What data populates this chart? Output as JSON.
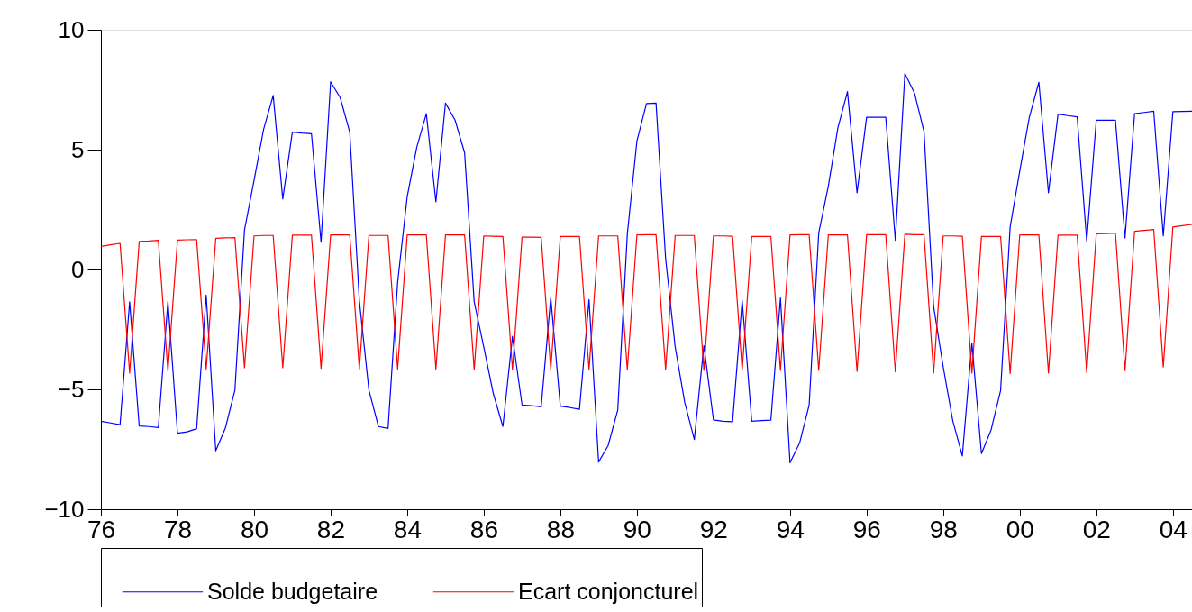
{
  "chart_data": {
    "type": "line",
    "x": [
      1976,
      1976.25,
      1976.5,
      1976.75,
      1977,
      1977.25,
      1977.5,
      1977.75,
      1978,
      1978.25,
      1978.5,
      1978.75,
      1979,
      1979.25,
      1979.5,
      1979.75,
      1980,
      1980.25,
      1980.5,
      1980.75,
      1981,
      1981.25,
      1981.5,
      1981.75,
      1982,
      1982.25,
      1982.5,
      1982.75,
      1983,
      1983.25,
      1983.5,
      1983.75,
      1984,
      1984.25,
      1984.5,
      1984.75,
      1985,
      1985.25,
      1985.5,
      1985.75,
      1986,
      1986.25,
      1986.5,
      1986.75,
      1987,
      1987.25,
      1987.5,
      1987.75,
      1988,
      1988.25,
      1988.5,
      1988.75,
      1989,
      1989.25,
      1989.5,
      1989.75,
      1990,
      1990.25,
      1990.5,
      1990.75,
      1991,
      1991.25,
      1991.5,
      1991.75,
      1992,
      1992.25,
      1992.5,
      1992.75,
      1993,
      1993.25,
      1993.5,
      1993.75,
      1994,
      1994.25,
      1994.5,
      1994.75,
      1995,
      1995.25,
      1995.5,
      1995.75,
      1996,
      1996.25,
      1996.5,
      1996.75,
      1997,
      1997.25,
      1997.5,
      1997.75,
      1998,
      1998.25,
      1998.5,
      1998.75,
      1999,
      1999.25,
      1999.5,
      1999.75,
      2000,
      2000.25,
      2000.5,
      2000.75,
      2001,
      2001.25,
      2001.5,
      2001.75,
      2002,
      2002.25,
      2002.5,
      2002.75,
      2003,
      2003.25,
      2003.5,
      2003.75,
      2004,
      2004.25,
      2004.5
    ],
    "series": [
      {
        "name": "Solde budgetaire",
        "color": "#0000ff",
        "values": [
          -6.33,
          -6.4,
          -6.47,
          -1.35,
          -6.53,
          -6.55,
          -6.59,
          -1.33,
          -6.83,
          -6.77,
          -6.64,
          -1.07,
          -7.56,
          -6.62,
          -5.03,
          1.65,
          3.72,
          5.85,
          7.26,
          2.94,
          5.73,
          5.69,
          5.66,
          1.14,
          7.83,
          7.17,
          5.73,
          -1.29,
          -5.03,
          -6.55,
          -6.63,
          -0.54,
          3.03,
          5.1,
          6.5,
          2.82,
          6.94,
          6.23,
          4.87,
          -1.35,
          -3.23,
          -5.18,
          -6.55,
          -2.79,
          -5.65,
          -5.68,
          -5.73,
          -1.17,
          -5.7,
          -5.76,
          -5.83,
          -1.25,
          -8.03,
          -7.34,
          -5.86,
          1.47,
          5.35,
          6.92,
          6.94,
          0.46,
          -3.23,
          -5.55,
          -7.09,
          -3.17,
          -6.27,
          -6.33,
          -6.35,
          -1.29,
          -6.33,
          -6.3,
          -6.28,
          -1.19,
          -8.06,
          -7.24,
          -5.65,
          1.53,
          3.47,
          5.91,
          7.42,
          3.2,
          6.35,
          6.35,
          6.35,
          1.22,
          8.18,
          7.36,
          5.75,
          -1.54,
          -4.05,
          -6.3,
          -7.78,
          -3.07,
          -7.68,
          -6.7,
          -5.05,
          1.78,
          4.1,
          6.35,
          7.81,
          3.2,
          6.48,
          6.42,
          6.37,
          1.19,
          6.23,
          6.23,
          6.23,
          1.32,
          6.5,
          6.55,
          6.6,
          1.4,
          6.58,
          6.59,
          6.6
        ]
      },
      {
        "name": "Ecart conjoncturel",
        "color": "#ff0000",
        "values": [
          0.96,
          1.03,
          1.09,
          -4.32,
          1.17,
          1.19,
          1.22,
          -4.24,
          1.23,
          1.24,
          1.25,
          -4.15,
          1.3,
          1.32,
          1.33,
          -4.1,
          1.4,
          1.42,
          1.42,
          -4.1,
          1.43,
          1.43,
          1.43,
          -4.12,
          1.44,
          1.44,
          1.44,
          -4.15,
          1.42,
          1.42,
          1.42,
          -4.15,
          1.44,
          1.44,
          1.44,
          -4.15,
          1.44,
          1.44,
          1.44,
          -4.17,
          1.4,
          1.39,
          1.38,
          -4.17,
          1.35,
          1.35,
          1.34,
          -4.17,
          1.38,
          1.38,
          1.38,
          -4.17,
          1.4,
          1.4,
          1.4,
          -4.17,
          1.44,
          1.45,
          1.45,
          -4.17,
          1.42,
          1.42,
          1.42,
          -4.21,
          1.4,
          1.4,
          1.39,
          -4.21,
          1.38,
          1.38,
          1.38,
          -4.21,
          1.44,
          1.45,
          1.45,
          -4.21,
          1.44,
          1.44,
          1.44,
          -4.25,
          1.45,
          1.45,
          1.45,
          -4.27,
          1.47,
          1.45,
          1.45,
          -4.32,
          1.4,
          1.4,
          1.39,
          -4.32,
          1.38,
          1.38,
          1.38,
          -4.34,
          1.44,
          1.44,
          1.44,
          -4.32,
          1.43,
          1.43,
          1.43,
          -4.3,
          1.49,
          1.5,
          1.52,
          -4.22,
          1.59,
          1.63,
          1.67,
          -4.07,
          1.77,
          1.83,
          1.88
        ]
      }
    ],
    "xlim": [
      1976,
      2004.5
    ],
    "xticks": [
      {
        "value": 1976,
        "label": "76"
      },
      {
        "value": 1978,
        "label": "78"
      },
      {
        "value": 1980,
        "label": "80"
      },
      {
        "value": 1982,
        "label": "82"
      },
      {
        "value": 1984,
        "label": "84"
      },
      {
        "value": 1986,
        "label": "86"
      },
      {
        "value": 1988,
        "label": "88"
      },
      {
        "value": 1990,
        "label": "90"
      },
      {
        "value": 1992,
        "label": "92"
      },
      {
        "value": 1994,
        "label": "94"
      },
      {
        "value": 1996,
        "label": "96"
      },
      {
        "value": 1998,
        "label": "98"
      },
      {
        "value": 2000,
        "label": "00"
      },
      {
        "value": 2002,
        "label": "02"
      },
      {
        "value": 2004,
        "label": "04"
      }
    ],
    "ylim": [
      -10,
      10
    ],
    "yticks": [
      -10,
      -5,
      0,
      5,
      10
    ],
    "grid": false,
    "legend": "bottom",
    "marker": "none",
    "line_style": "solid"
  }
}
